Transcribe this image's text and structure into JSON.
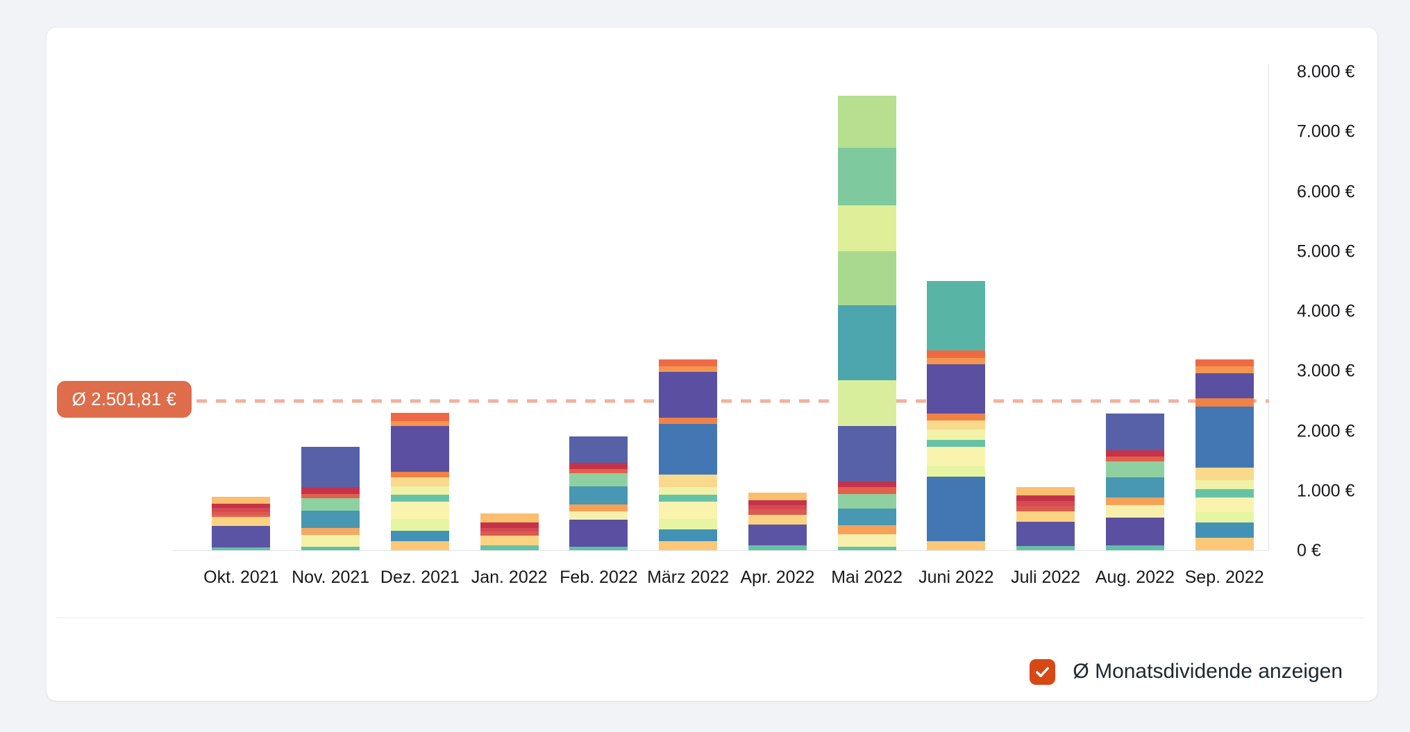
{
  "average_line": {
    "badge_label": "Ø 2.501,81 €",
    "value": 2501.81,
    "badge_color": "#DD6D4B",
    "line_color": "#F2B19E"
  },
  "footer": {
    "checkbox_checked": true,
    "checkbox_label": "Ø Monatsdividende anzeigen",
    "checkbox_color": "#D64915"
  },
  "chart_data": {
    "type": "bar",
    "stacked": true,
    "title": "",
    "xlabel": "",
    "ylabel": "€",
    "ylim": [
      0,
      8000
    ],
    "grid": false,
    "legend": false,
    "yticks": [
      {
        "value": 0,
        "label": "0 €"
      },
      {
        "value": 1000,
        "label": "1.000 €"
      },
      {
        "value": 2000,
        "label": "2.000 €"
      },
      {
        "value": 3000,
        "label": "3.000 €"
      },
      {
        "value": 4000,
        "label": "4.000 €"
      },
      {
        "value": 5000,
        "label": "5.000 €"
      },
      {
        "value": 6000,
        "label": "6.000 €"
      },
      {
        "value": 7000,
        "label": "7.000 €"
      },
      {
        "value": 8000,
        "label": "8.000 €"
      }
    ],
    "categories": [
      "Okt. 2021",
      "Nov. 2021",
      "Dez. 2021",
      "Jan. 2022",
      "Feb. 2022",
      "März 2022",
      "Apr. 2022",
      "Mai 2022",
      "Juni 2022",
      "Juli 2022",
      "Aug. 2022",
      "Sep. 2022"
    ],
    "average": {
      "value": 2501.81,
      "label": "Ø 2.501,81 €"
    },
    "bars": [
      {
        "month": "Okt. 2021",
        "total": 895,
        "segments": [
          {
            "color": "#66C2A5",
            "value": 50
          },
          {
            "color": "#5B54A4",
            "value": 360
          },
          {
            "color": "#FAD382",
            "value": 150
          },
          {
            "color": "#E1684F",
            "value": 35
          },
          {
            "color": "#DB5A51",
            "value": 45
          },
          {
            "color": "#D44A50",
            "value": 70
          },
          {
            "color": "#C5334A",
            "value": 70
          },
          {
            "color": "#F9BE6E",
            "value": 115
          }
        ]
      },
      {
        "month": "Nov. 2021",
        "total": 1730,
        "segments": [
          {
            "color": "#63BFA2",
            "value": 60
          },
          {
            "color": "#F5F2A8",
            "value": 200
          },
          {
            "color": "#F5A963",
            "value": 115
          },
          {
            "color": "#4897B3",
            "value": 290
          },
          {
            "color": "#8FD0A0",
            "value": 210
          },
          {
            "color": "#E2604C",
            "value": 70
          },
          {
            "color": "#C5334A",
            "value": 105
          },
          {
            "color": "#5661A8",
            "value": 680
          }
        ]
      },
      {
        "month": "Dez. 2021",
        "total": 2295,
        "segments": [
          {
            "color": "#FBC878",
            "value": 150
          },
          {
            "color": "#4292B5",
            "value": 175
          },
          {
            "color": "#E6F5A1",
            "value": 200
          },
          {
            "color": "#F9F3AE",
            "value": 290
          },
          {
            "color": "#66C2A5",
            "value": 115
          },
          {
            "color": "#EFF2A6",
            "value": 140
          },
          {
            "color": "#F9D98C",
            "value": 150
          },
          {
            "color": "#F08246",
            "value": 95
          },
          {
            "color": "#5A4FA0",
            "value": 760
          },
          {
            "color": "#F5964F",
            "value": 80
          },
          {
            "color": "#ED6A45",
            "value": 140
          }
        ]
      },
      {
        "month": "Jan. 2022",
        "total": 610,
        "segments": [
          {
            "color": "#66C2A5",
            "value": 80
          },
          {
            "color": "#FAD382",
            "value": 165
          },
          {
            "color": "#DB5A51",
            "value": 70
          },
          {
            "color": "#D44A50",
            "value": 60
          },
          {
            "color": "#C5334A",
            "value": 95
          },
          {
            "color": "#F9BE6E",
            "value": 140
          }
        ]
      },
      {
        "month": "Feb. 2022",
        "total": 1905,
        "segments": [
          {
            "color": "#5FBFA4",
            "value": 60
          },
          {
            "color": "#5A4FA0",
            "value": 445
          },
          {
            "color": "#F7F0AC",
            "value": 140
          },
          {
            "color": "#F5A258",
            "value": 115
          },
          {
            "color": "#4897B3",
            "value": 305
          },
          {
            "color": "#8FD0A0",
            "value": 220
          },
          {
            "color": "#E2604C",
            "value": 70
          },
          {
            "color": "#C5334A",
            "value": 105
          },
          {
            "color": "#5661A8",
            "value": 445
          }
        ]
      },
      {
        "month": "März 2022",
        "total": 3190,
        "segments": [
          {
            "color": "#FBC878",
            "value": 150
          },
          {
            "color": "#4292B5",
            "value": 200
          },
          {
            "color": "#E6F5A1",
            "value": 175
          },
          {
            "color": "#F9F3AE",
            "value": 290
          },
          {
            "color": "#66C2A5",
            "value": 115
          },
          {
            "color": "#EFF2A6",
            "value": 130
          },
          {
            "color": "#F9D98C",
            "value": 200
          },
          {
            "color": "#4277B4",
            "value": 855
          },
          {
            "color": "#F08246",
            "value": 105
          },
          {
            "color": "#5A4FA0",
            "value": 760
          },
          {
            "color": "#F5964F",
            "value": 95
          },
          {
            "color": "#ED6A45",
            "value": 115
          }
        ]
      },
      {
        "month": "Apr. 2022",
        "total": 960,
        "segments": [
          {
            "color": "#66C2A5",
            "value": 80
          },
          {
            "color": "#5B54A4",
            "value": 350
          },
          {
            "color": "#FAD382",
            "value": 165
          },
          {
            "color": "#DB5A51",
            "value": 95
          },
          {
            "color": "#D44A50",
            "value": 60
          },
          {
            "color": "#C5334A",
            "value": 80
          },
          {
            "color": "#F9BE6E",
            "value": 130
          }
        ]
      },
      {
        "month": "Mai 2022",
        "total": 7595,
        "segments": [
          {
            "color": "#66C2A5",
            "value": 60
          },
          {
            "color": "#F7F0AC",
            "value": 210
          },
          {
            "color": "#F5A258",
            "value": 150
          },
          {
            "color": "#4897B3",
            "value": 280
          },
          {
            "color": "#8FD0A0",
            "value": 245
          },
          {
            "color": "#E2604C",
            "value": 105
          },
          {
            "color": "#C5334A",
            "value": 95
          },
          {
            "color": "#5661A8",
            "value": 935
          },
          {
            "color": "#D9EE9C",
            "value": 760
          },
          {
            "color": "#4DA5AE",
            "value": 1250
          },
          {
            "color": "#A8D98F",
            "value": 910
          },
          {
            "color": "#DFEF98",
            "value": 760
          },
          {
            "color": "#7FC99F",
            "value": 960
          },
          {
            "color": "#B6DF8F",
            "value": 875
          }
        ]
      },
      {
        "month": "Juni 2022",
        "total": 4500,
        "segments": [
          {
            "color": "#FBC878",
            "value": 150
          },
          {
            "color": "#4277B4",
            "value": 1075
          },
          {
            "color": "#E6F5A1",
            "value": 175
          },
          {
            "color": "#F9F3AE",
            "value": 330
          },
          {
            "color": "#66C2A5",
            "value": 115
          },
          {
            "color": "#F2F3A9",
            "value": 175
          },
          {
            "color": "#F9D98C",
            "value": 150
          },
          {
            "color": "#F08246",
            "value": 115
          },
          {
            "color": "#5A4FA0",
            "value": 820
          },
          {
            "color": "#F5964F",
            "value": 105
          },
          {
            "color": "#ED6A45",
            "value": 130
          },
          {
            "color": "#58B5A6",
            "value": 1160
          }
        ]
      },
      {
        "month": "Juli 2022",
        "total": 1055,
        "segments": [
          {
            "color": "#66C2A5",
            "value": 70
          },
          {
            "color": "#5B54A4",
            "value": 400
          },
          {
            "color": "#FAD382",
            "value": 175
          },
          {
            "color": "#DB5A51",
            "value": 95
          },
          {
            "color": "#D44A50",
            "value": 80
          },
          {
            "color": "#C5334A",
            "value": 95
          },
          {
            "color": "#F9BE6E",
            "value": 140
          }
        ]
      },
      {
        "month": "Aug. 2022",
        "total": 2285,
        "segments": [
          {
            "color": "#5FBFA4",
            "value": 80
          },
          {
            "color": "#5A4FA0",
            "value": 470
          },
          {
            "color": "#F7F0AC",
            "value": 200
          },
          {
            "color": "#F5A258",
            "value": 130
          },
          {
            "color": "#4897B3",
            "value": 340
          },
          {
            "color": "#8FD0A0",
            "value": 270
          },
          {
            "color": "#E2604C",
            "value": 80
          },
          {
            "color": "#C5334A",
            "value": 95
          },
          {
            "color": "#5661A8",
            "value": 620
          }
        ]
      },
      {
        "month": "Sep. 2022",
        "total": 3185,
        "segments": [
          {
            "color": "#FBC878",
            "value": 210
          },
          {
            "color": "#4292B5",
            "value": 255
          },
          {
            "color": "#E6F5A1",
            "value": 175
          },
          {
            "color": "#F9F3AE",
            "value": 245
          },
          {
            "color": "#66C2A5",
            "value": 140
          },
          {
            "color": "#EFF2A6",
            "value": 150
          },
          {
            "color": "#F9D98C",
            "value": 200
          },
          {
            "color": "#4277B4",
            "value": 1030
          },
          {
            "color": "#F08246",
            "value": 140
          },
          {
            "color": "#5A4FA0",
            "value": 410
          },
          {
            "color": "#F5964F",
            "value": 115
          },
          {
            "color": "#ED6A45",
            "value": 115
          }
        ]
      }
    ]
  }
}
